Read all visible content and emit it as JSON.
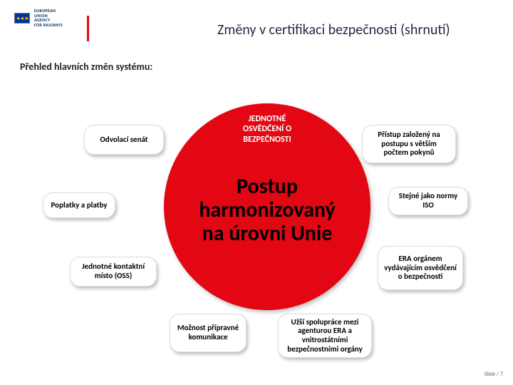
{
  "logo": {
    "line1": "EUROPEAN",
    "line2": "UNION",
    "line3": "AGENCY",
    "line4": "FOR RAILWAYS",
    "stars": "★ ★ ★",
    "flag_bg": "#003399",
    "star_color": "#ffcc00"
  },
  "title": "Změny v certifikaci bezpečnosti (shrnutí)",
  "subtitle": "Přehled hlavních změn systému:",
  "diagram": {
    "type": "infographic",
    "circle_color": "#e30613",
    "node_bg": "#ffffff",
    "node_shadow": "rgba(0,0,0,0.25)",
    "top_label": {
      "l1": "JEDNOTNÉ",
      "l2": "OSVĚDČENÍ O",
      "l3": "BEZPEČNOSTI",
      "color": "#ffffff",
      "fontsize": 12
    },
    "center": {
      "l1": "Postup",
      "l2": "harmonizovaný",
      "l3": "na úrovni Unie",
      "color": "#000000",
      "fontsize": 30
    },
    "nodes": {
      "n1": "Odvolací senát",
      "n2": "Poplatky a platby",
      "n3": "Jednotné kontaktní místo (OSS)",
      "n4": "Možnost přípravné komunikace",
      "n5": "Užší spolupráce mezi agenturou ERA a vnitrostátními bezpečnostními orgány",
      "n6": "ERA orgánem vydávajícím osvědčení o bezpečnosti",
      "n7": "Stejné jako normy ISO",
      "n8": "Přístup založený na postupu s větším počtem pokynů"
    },
    "node_fontsize": 11
  },
  "footer": "Slide / 7"
}
